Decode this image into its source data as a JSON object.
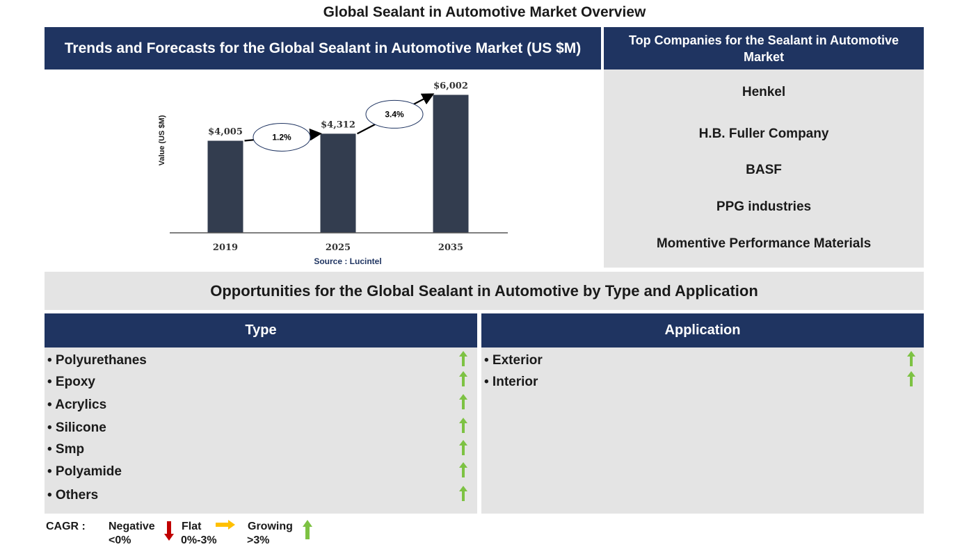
{
  "page_title": "Global Sealant in Automotive Market Overview",
  "trends": {
    "title": "Trends and Forecasts for the Global Sealant in Automotive Market (US $M)",
    "source": "Source : Lucintel"
  },
  "chart_data": {
    "type": "bar",
    "categories": [
      "2019",
      "2025",
      "2035"
    ],
    "values": [
      4005,
      4312,
      6002
    ],
    "value_labels": [
      "$4,005",
      "$4,312",
      "$6,002"
    ],
    "ylabel": "Value (US $M)",
    "xlabel": "",
    "ylim": [
      0,
      6500
    ],
    "grid": false,
    "bar_color": "#333d4f",
    "annotations": [
      {
        "label": "1.2%",
        "from": "2019",
        "to": "2025"
      },
      {
        "label": "3.4%",
        "from": "2025",
        "to": "2035"
      }
    ]
  },
  "companies": {
    "title": "Top Companies for the Sealant in Automotive Market",
    "items": [
      "Henkel",
      "H.B. Fuller Company",
      "BASF",
      "PPG industries",
      "Momentive Performance Materials"
    ]
  },
  "opportunities": {
    "title": "Opportunities for the Global Sealant in Automotive by Type and Application",
    "type_header": "Type",
    "application_header": "Application",
    "type_items": [
      "• Polyurethanes",
      "• Epoxy",
      "• Acrylics",
      "• Silicone",
      "• Smp",
      "• Polyamide",
      "• Others"
    ],
    "application_items": [
      "• Exterior",
      "• Interior"
    ],
    "trend_icon": "green-up-arrow-icon"
  },
  "legend": {
    "label": "CAGR :",
    "negative": {
      "label": "Negative",
      "range": "<0%",
      "icon": "red-down-arrow-icon"
    },
    "flat": {
      "label": "Flat",
      "range": "0%-3%",
      "icon": "yellow-right-arrow-icon"
    },
    "growing": {
      "label": "Growing",
      "range": ">3%",
      "icon": "green-up-arrow-icon"
    }
  },
  "colors": {
    "navy": "#1f3461",
    "panel_grey": "#e4e4e4",
    "bar": "#333d4f",
    "green": "#7dc243",
    "red": "#c00000",
    "yellow": "#ffc000"
  }
}
